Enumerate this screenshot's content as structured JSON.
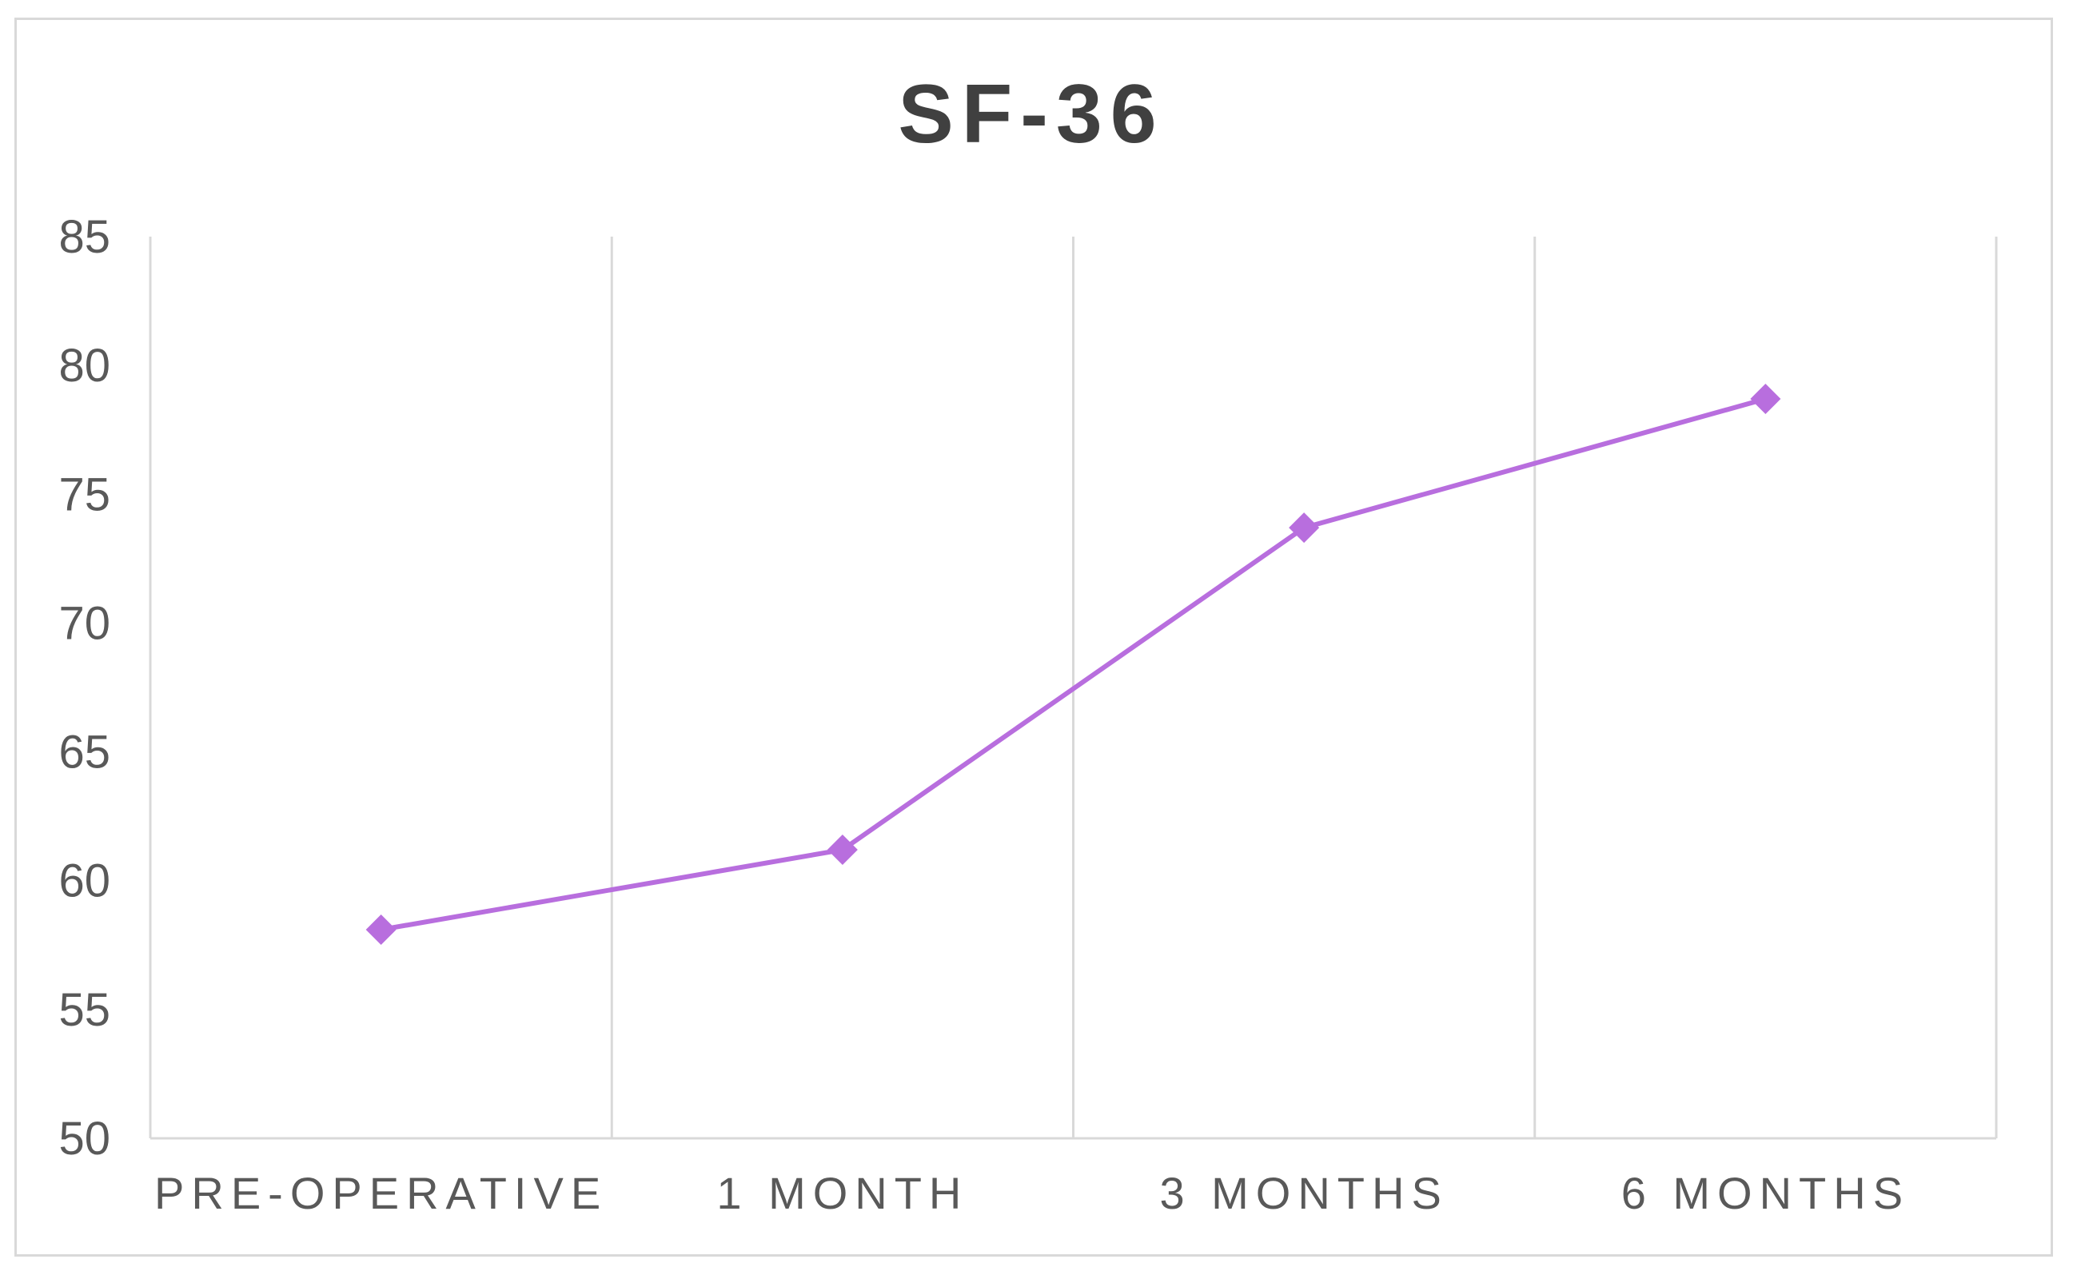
{
  "chart_data": {
    "type": "line",
    "title": "SF-36",
    "xlabel": "",
    "ylabel": "",
    "categories": [
      "PRE-OPERATIVE",
      "1 MONTH",
      "3 MONTHS",
      "6 MONTHS"
    ],
    "series": [
      {
        "values": [
          58.1,
          61.2,
          73.7,
          78.7
        ],
        "color": "#b86ede",
        "marker": "diamond"
      }
    ],
    "ylim": [
      50,
      85
    ],
    "yticks": [
      50,
      55,
      60,
      65,
      70,
      75,
      80,
      85
    ],
    "grid": "vertical",
    "legend": "none"
  }
}
